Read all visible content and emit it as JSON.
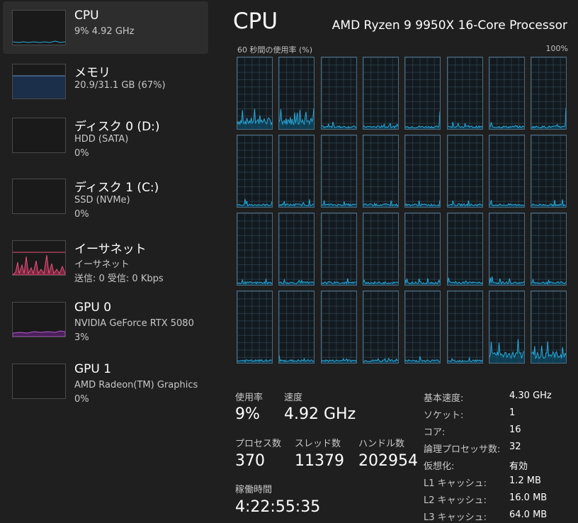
{
  "sidebar": {
    "items": [
      {
        "title": "CPU",
        "sub": "9%  4.92 GHz",
        "sub2": "",
        "graph": "cpu"
      },
      {
        "title": "メモリ",
        "sub": "20.9/31.1 GB (67%)",
        "sub2": "",
        "graph": "memory"
      },
      {
        "title": "ディスク 0 (D:)",
        "sub": "HDD (SATA)",
        "sub2": "0%",
        "graph": "empty"
      },
      {
        "title": "ディスク 1 (C:)",
        "sub": "SSD (NVMe)",
        "sub2": "0%",
        "graph": "empty"
      },
      {
        "title": "イーサネット",
        "sub": "イーサネット",
        "sub2": "送信: 0  受信: 0 Kbps",
        "graph": "ethernet"
      },
      {
        "title": "GPU 0",
        "sub": "NVIDIA GeForce RTX 5080",
        "sub2": "3%",
        "graph": "gpu"
      },
      {
        "title": "GPU 1",
        "sub": "AMD Radeon(TM) Graphics",
        "sub2": "0%",
        "graph": "empty"
      }
    ]
  },
  "header": {
    "title": "CPU",
    "processor": "AMD Ryzen 9 9950X 16-Core Processor",
    "usage_label": "60 秒間の使用率 (%)",
    "max_label": "100%"
  },
  "cores": {
    "count": 32,
    "high_activity": [
      0,
      1,
      30,
      31
    ],
    "colors": {
      "line": "#2aa9d8",
      "fill": "#0e4e69",
      "grid": "#4b6d84"
    }
  },
  "stats": {
    "usage": {
      "label": "使用率",
      "value": "9%"
    },
    "speed": {
      "label": "速度",
      "value": "4.92 GHz"
    },
    "processes": {
      "label": "プロセス数",
      "value": "370"
    },
    "threads": {
      "label": "スレッド数",
      "value": "11379"
    },
    "handles": {
      "label": "ハンドル数",
      "value": "202954"
    },
    "uptime": {
      "label": "稼働時間",
      "value": "4:22:55:35"
    }
  },
  "specs": [
    {
      "key": "基本速度:",
      "value": "4.30 GHz"
    },
    {
      "key": "ソケット:",
      "value": "1"
    },
    {
      "key": "コア:",
      "value": "16"
    },
    {
      "key": "論理プロセッサ数:",
      "value": "32"
    },
    {
      "key": "仮想化:",
      "value": "有効"
    },
    {
      "key": "L1 キャッシュ:",
      "value": "1.2 MB"
    },
    {
      "key": "L2 キャッシュ:",
      "value": "16.0 MB"
    },
    {
      "key": "L3 キャッシュ:",
      "value": "64.0 MB"
    }
  ],
  "theme": {
    "cpu": "#2aa9d8",
    "memory": "#6a95c9",
    "ethernet": "#e8537a",
    "gpu": "#b45bd2"
  }
}
